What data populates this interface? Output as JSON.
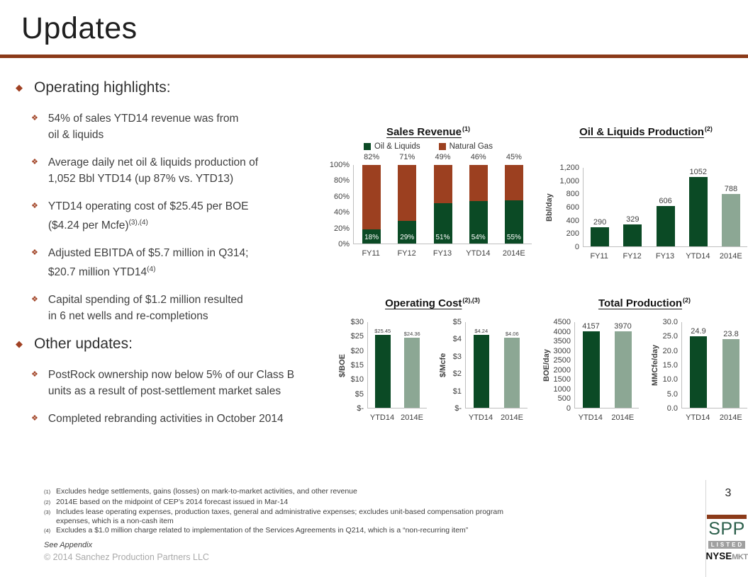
{
  "slide": {
    "title": "Updates",
    "page_number": "3",
    "see_appendix": "See Appendix",
    "copyright": "© 2014 Sanchez Production Partners LLC"
  },
  "colors": {
    "rule": "#8b3a19",
    "rust": "#9c4020",
    "dark_green": "#0b4a25",
    "sage": "#8ca794",
    "bullet": "#a04123",
    "logo_green": "#2b5f4b",
    "logo_gray": "#a0a0a0"
  },
  "sections": [
    {
      "label": "Operating highlights:",
      "items": [
        {
          "lines": [
            {
              "text": "54% of sales YTD14 revenue was from"
            },
            {
              "text": "oil & liquids"
            }
          ]
        },
        {
          "lines": [
            {
              "text": "Average daily net oil & liquids production of"
            },
            {
              "text": "1,052 Bbl  YTD14 (up 87% vs. YTD13)"
            }
          ]
        },
        {
          "lines": [
            {
              "text": "YTD14 operating cost of $25.45 per BOE"
            },
            {
              "text": "($4.24 per Mcfe)",
              "sup": "(3),(4)"
            }
          ]
        },
        {
          "lines": [
            {
              "text": "Adjusted EBITDA of $5.7 million in Q314;"
            },
            {
              "text": "$20.7 million YTD14",
              "sup": "(4)"
            }
          ]
        },
        {
          "lines": [
            {
              "text": "Capital spending of $1.2 million resulted"
            },
            {
              "text": "in 6 net wells and re-completions"
            }
          ]
        }
      ]
    },
    {
      "label": "Other updates:",
      "items": [
        {
          "lines": [
            {
              "text": "PostRock ownership now below 5% of our Class B"
            },
            {
              "text": "units as a result of post-settlement market sales"
            }
          ]
        },
        {
          "lines": [
            {
              "text": "Completed rebranding activities in October 2014"
            }
          ]
        }
      ]
    }
  ],
  "chart_data": [
    {
      "id": "sales_revenue",
      "type": "bar",
      "subtype": "stacked",
      "title": "Sales Revenue",
      "title_sup": "(1)",
      "legend": [
        {
          "label": "Oil & Liquids",
          "color": "dark_green"
        },
        {
          "label": "Natural Gas",
          "color": "rust"
        }
      ],
      "categories": [
        "FY11",
        "FY12",
        "FY13",
        "YTD14",
        "2014E"
      ],
      "series": [
        {
          "name": "Oil & Liquids",
          "values": [
            18,
            29,
            51,
            54,
            55
          ],
          "labels": [
            "18%",
            "29%",
            "51%",
            "54%",
            "55%"
          ],
          "color": "dark_green"
        },
        {
          "name": "Natural Gas",
          "values": [
            82,
            71,
            49,
            46,
            45
          ],
          "labels": [
            "82%",
            "71%",
            "49%",
            "46%",
            "45%"
          ],
          "color": "rust"
        }
      ],
      "yticks": [
        "100%",
        "80%",
        "60%",
        "40%",
        "20%",
        "0%"
      ],
      "ylim": [
        0,
        100
      ],
      "ymax": 100,
      "grid": false,
      "legend_position": "top"
    },
    {
      "id": "oil_liquids_production",
      "type": "bar",
      "title": "Oil & Liquids Production",
      "title_sup": "(2)",
      "ylabel": "Bbl/day",
      "categories": [
        "FY11",
        "FY12",
        "FY13",
        "YTD14",
        "2014E"
      ],
      "values": [
        290,
        329,
        606,
        1052,
        788
      ],
      "labels": [
        "290",
        "329",
        "606",
        "1052",
        "788"
      ],
      "bar_colors": [
        "dark_green",
        "dark_green",
        "dark_green",
        "dark_green",
        "sage"
      ],
      "yticks": [
        "1,200",
        "1,000",
        "800",
        "600",
        "400",
        "200",
        "0"
      ],
      "ylim": [
        0,
        1200
      ],
      "ymax": 1200,
      "grid": false
    },
    {
      "id": "operating_cost",
      "type": "group",
      "title": "Operating Cost",
      "title_sup": "(2),(3)",
      "charts": [
        {
          "type": "bar",
          "ylabel": "$/BOE",
          "categories": [
            "YTD14",
            "2014E"
          ],
          "values": [
            25.45,
            24.36
          ],
          "labels": [
            "$25.45",
            "$24.36"
          ],
          "bar_colors": [
            "dark_green",
            "sage"
          ],
          "yticks": [
            "$30",
            "$25",
            "$20",
            "$15",
            "$10",
            "$5",
            "$-"
          ],
          "ylim": [
            0,
            30
          ],
          "ymax": 30,
          "label_small": true
        },
        {
          "type": "bar",
          "ylabel": "$/Mcfe",
          "categories": [
            "YTD14",
            "2014E"
          ],
          "values": [
            4.24,
            4.06
          ],
          "labels": [
            "$4.24",
            "$4.06"
          ],
          "bar_colors": [
            "dark_green",
            "sage"
          ],
          "yticks": [
            "$5",
            "$4",
            "$3",
            "$2",
            "$1",
            "$-"
          ],
          "ylim": [
            0,
            5
          ],
          "ymax": 5,
          "label_small": true
        }
      ]
    },
    {
      "id": "total_production",
      "type": "group",
      "title": "Total Production",
      "title_sup": "(2)",
      "charts": [
        {
          "type": "bar",
          "ylabel": "BOE/day",
          "categories": [
            "YTD14",
            "2014E"
          ],
          "values": [
            4157,
            3970
          ],
          "labels": [
            "4157",
            "3970"
          ],
          "bar_colors": [
            "dark_green",
            "sage"
          ],
          "yticks": [
            "4500",
            "4000",
            "3500",
            "3000",
            "2500",
            "2000",
            "1500",
            "1000",
            "500",
            "0"
          ],
          "ylim": [
            0,
            4500
          ],
          "ymax": 4500
        },
        {
          "type": "bar",
          "ylabel": "MMCfe/day",
          "categories": [
            "YTD14",
            "2014E"
          ],
          "values": [
            24.9,
            23.8
          ],
          "labels": [
            "24.9",
            "23.8"
          ],
          "bar_colors": [
            "dark_green",
            "sage"
          ],
          "yticks": [
            "30.0",
            "25.0",
            "20.0",
            "15.0",
            "10.0",
            "5.0",
            "0.0"
          ],
          "ylim": [
            0,
            30
          ],
          "ymax": 30
        }
      ]
    }
  ],
  "footnotes": [
    {
      "sup": "(1)",
      "text": "Excludes hedge settlements, gains (losses) on mark-to-market activities, and other revenue"
    },
    {
      "sup": "(2)",
      "text": "2014E based on the midpoint of CEP’s 2014 forecast issued in Mar-14"
    },
    {
      "sup": "(3)",
      "text": "Includes lease operating expenses, production taxes, general and administrative expenses; excludes unit-based compensation program expenses, which is a non-cash item"
    },
    {
      "sup": "(4)",
      "text": "Excludes a $1.0  million charge related to implementation of the Services Agreements in Q214, which is a “non-recurring item”"
    }
  ],
  "logo": {
    "spp": "SPP",
    "listed": "LISTED",
    "nyse": "NYSE",
    "mkt": "MKT"
  }
}
